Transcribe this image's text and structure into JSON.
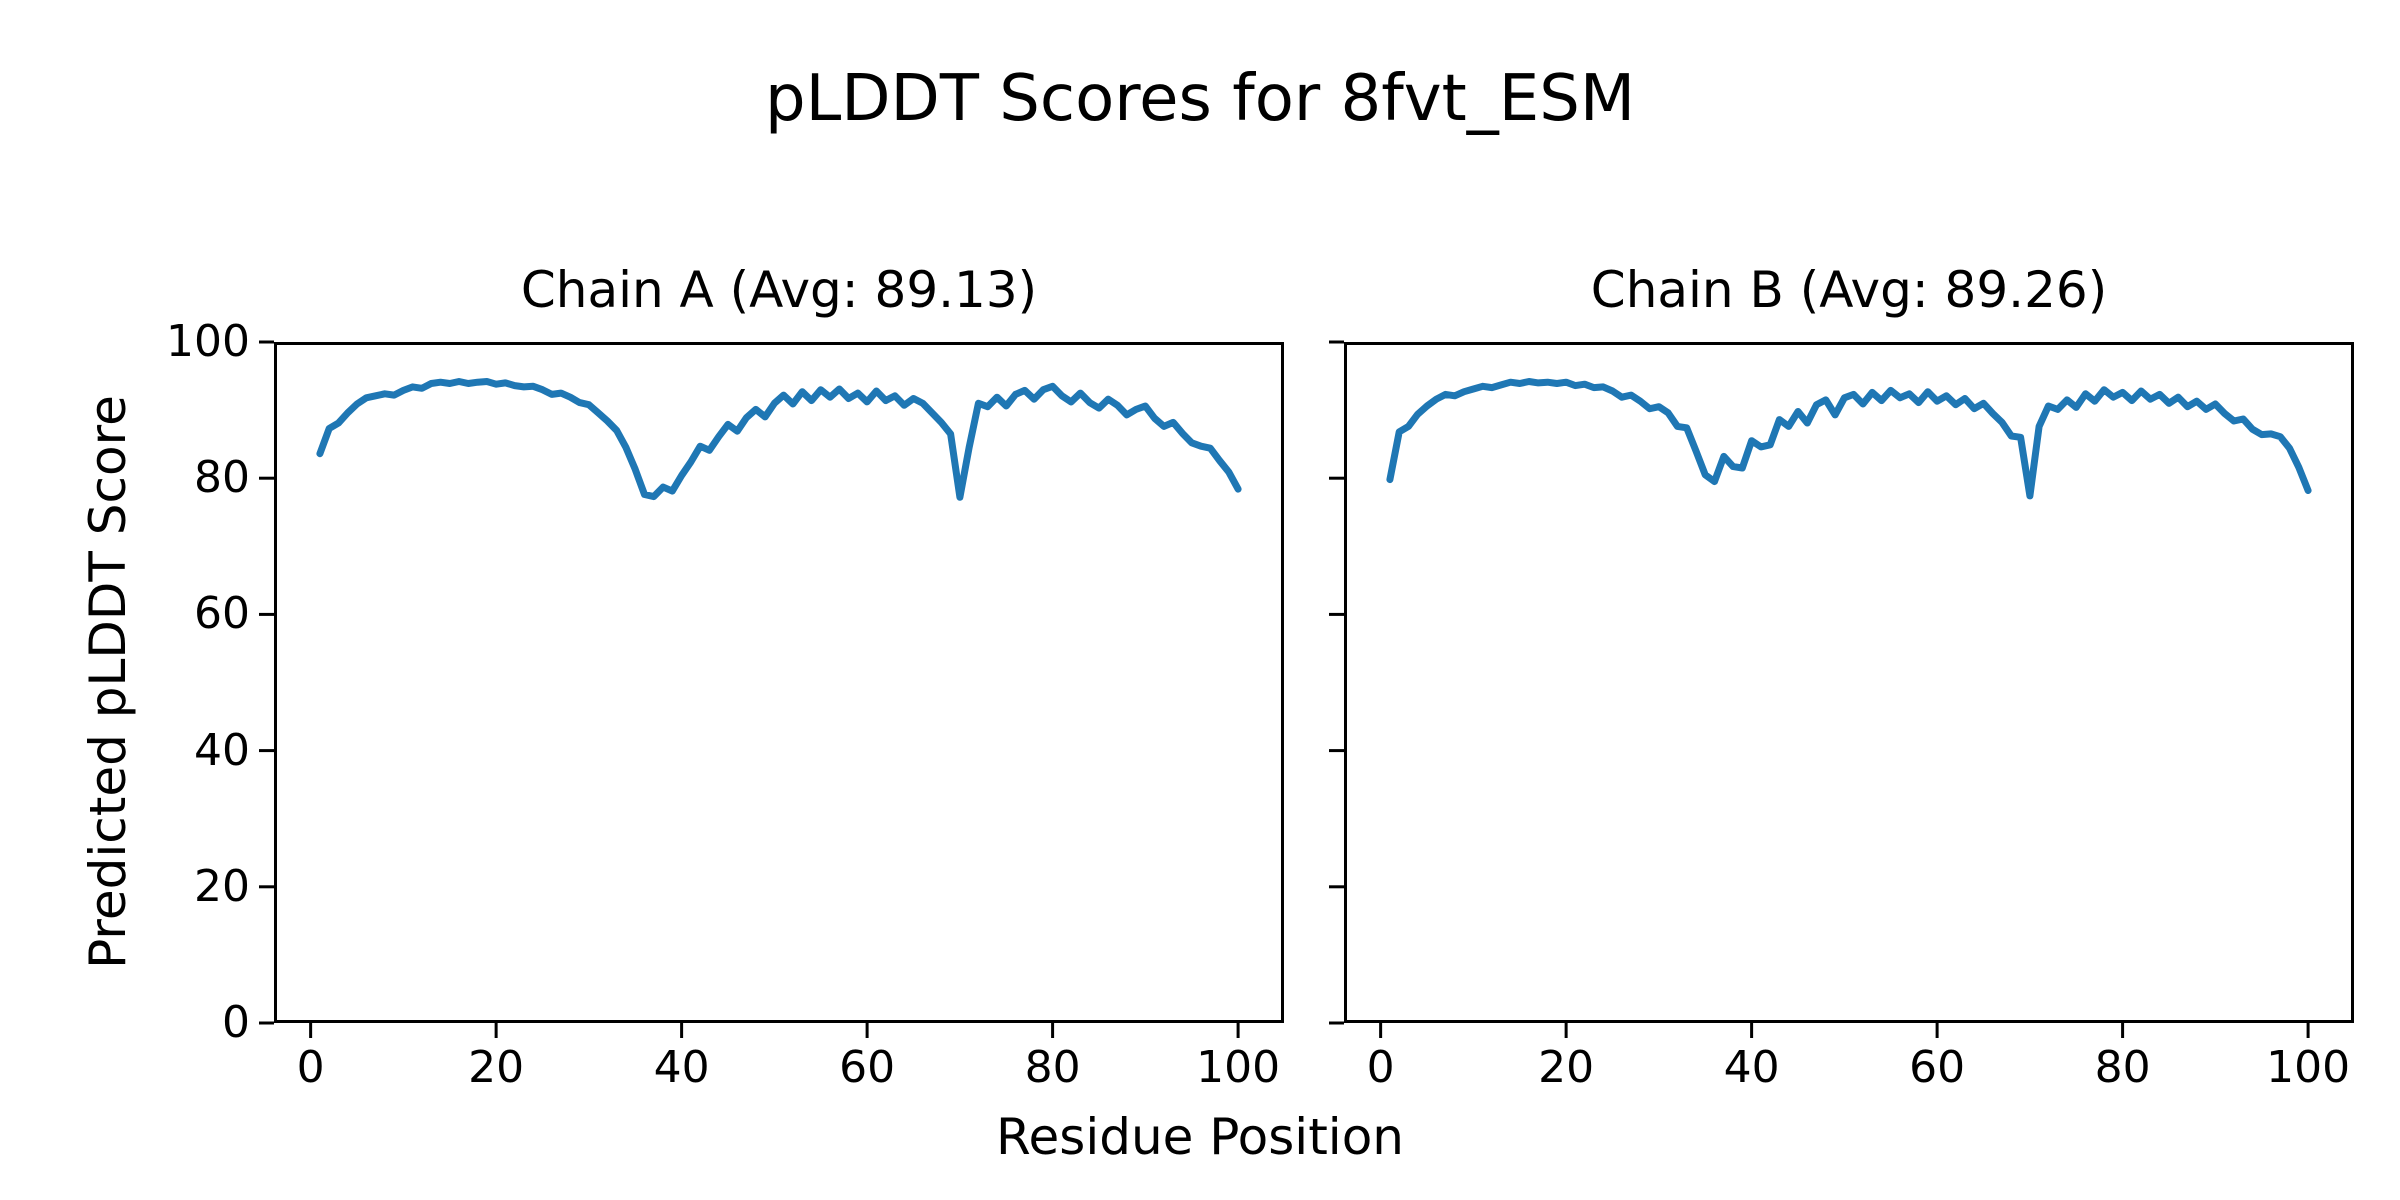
{
  "figure": {
    "title": "pLDDT Scores for 8fvt_ESM",
    "xlabel": "Residue Position",
    "ylabel": "Predicted pLDDT Score",
    "background_color": "#ffffff",
    "text_color": "#000000",
    "spine_color": "#000000",
    "line_color": "#1f77b4"
  },
  "chart_data": [
    {
      "type": "line",
      "title": "Chain A (Avg: 89.13)",
      "chain": "A",
      "average_plddt": 89.13,
      "x_start": 1,
      "xlim": [
        -3.95,
        104.95
      ],
      "ylim": [
        0,
        100
      ],
      "xticks": [
        0,
        20,
        40,
        60,
        80,
        100
      ],
      "yticks": [
        0,
        20,
        40,
        60,
        80,
        100
      ],
      "show_ytick_labels": true,
      "values": [
        83.6,
        87.3,
        88.1,
        89.6,
        90.9,
        91.8,
        92.1,
        92.4,
        92.2,
        92.9,
        93.4,
        93.2,
        93.9,
        94.1,
        93.9,
        94.2,
        93.9,
        94.1,
        94.2,
        93.8,
        94.0,
        93.6,
        93.4,
        93.5,
        93.0,
        92.3,
        92.5,
        91.9,
        91.1,
        90.8,
        89.6,
        88.4,
        87.0,
        84.5,
        81.3,
        77.6,
        77.3,
        78.7,
        78.1,
        80.4,
        82.4,
        84.7,
        84.1,
        86.1,
        87.9,
        86.9,
        88.9,
        90.1,
        89.0,
        91.0,
        92.2,
        90.9,
        92.7,
        91.4,
        93.0,
        91.9,
        93.1,
        91.7,
        92.5,
        91.2,
        92.8,
        91.4,
        92.1,
        90.7,
        91.7,
        91.0,
        89.6,
        88.2,
        86.5,
        77.2,
        84.5,
        91.0,
        90.5,
        91.9,
        90.6,
        92.3,
        92.9,
        91.6,
        93.0,
        93.5,
        92.1,
        91.2,
        92.5,
        91.1,
        90.3,
        91.6,
        90.7,
        89.3,
        90.1,
        90.6,
        88.8,
        87.6,
        88.2,
        86.6,
        85.2,
        84.7,
        84.4,
        82.6,
        80.9,
        78.4
      ]
    },
    {
      "type": "line",
      "title": "Chain B (Avg: 89.26)",
      "chain": "B",
      "average_plddt": 89.26,
      "x_start": 1,
      "xlim": [
        -3.95,
        104.95
      ],
      "ylim": [
        0,
        100
      ],
      "xticks": [
        0,
        20,
        40,
        60,
        80,
        100
      ],
      "yticks": [
        0,
        20,
        40,
        60,
        80,
        100
      ],
      "show_ytick_labels": false,
      "values": [
        79.8,
        86.8,
        87.6,
        89.4,
        90.6,
        91.6,
        92.3,
        92.1,
        92.7,
        93.1,
        93.5,
        93.3,
        93.7,
        94.1,
        93.9,
        94.2,
        94.0,
        94.1,
        93.9,
        94.1,
        93.6,
        93.8,
        93.3,
        93.4,
        92.8,
        91.9,
        92.2,
        91.3,
        90.2,
        90.5,
        89.6,
        87.6,
        87.4,
        84.0,
        80.5,
        79.5,
        83.2,
        81.7,
        81.5,
        85.5,
        84.6,
        84.9,
        88.6,
        87.6,
        89.8,
        88.1,
        90.8,
        91.5,
        89.3,
        91.8,
        92.3,
        90.9,
        92.6,
        91.4,
        92.9,
        91.8,
        92.4,
        91.1,
        92.7,
        91.3,
        92.1,
        90.8,
        91.7,
        90.2,
        91.0,
        89.5,
        88.2,
        86.2,
        86.0,
        77.4,
        87.6,
        90.6,
        90.1,
        91.5,
        90.4,
        92.4,
        91.3,
        93.0,
        91.9,
        92.6,
        91.4,
        92.8,
        91.6,
        92.3,
        91.0,
        91.9,
        90.5,
        91.3,
        90.1,
        90.9,
        89.5,
        88.4,
        88.7,
        87.2,
        86.4,
        86.5,
        86.1,
        84.4,
        81.6,
        78.2
      ]
    }
  ]
}
